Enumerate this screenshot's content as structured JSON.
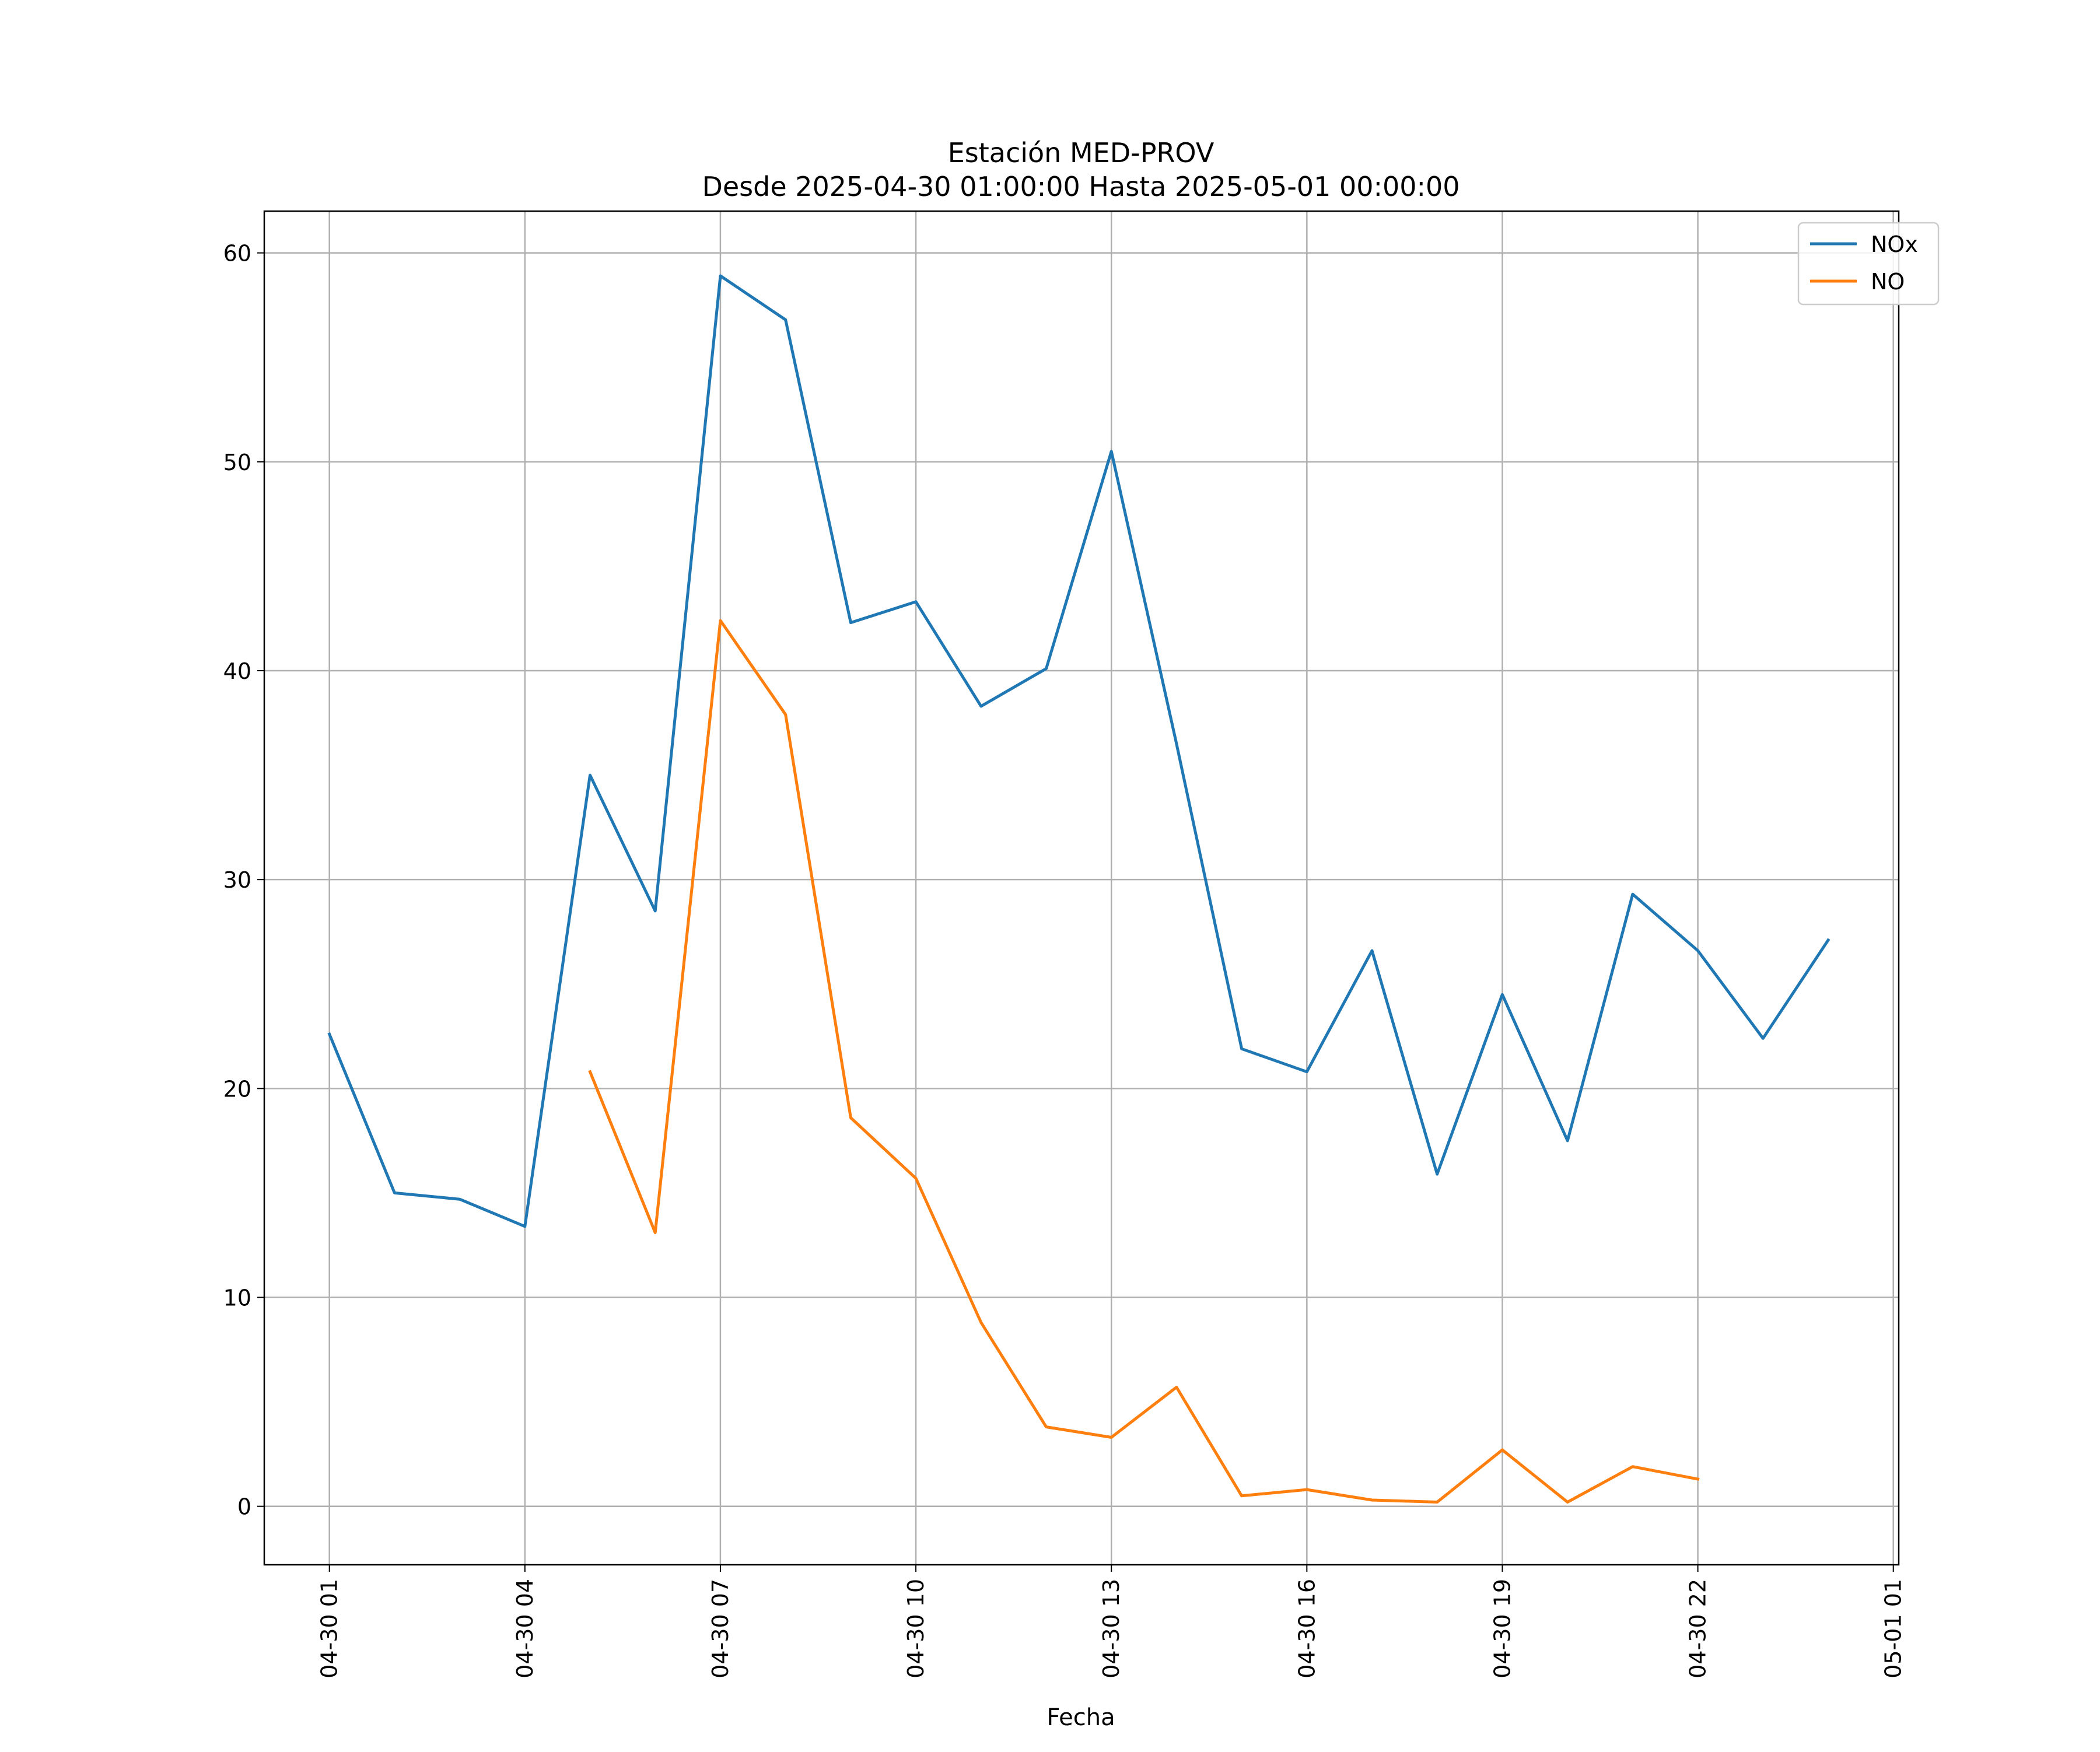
{
  "chart_data": {
    "type": "line",
    "title": "Estación MED-PROV",
    "subtitle": "Desde 2025-04-30 01:00:00 Hasta 2025-05-01 00:00:00",
    "xlabel": "Fecha",
    "ylabel": "",
    "x": [
      "04-30 01",
      "04-30 02",
      "04-30 03",
      "04-30 04",
      "04-30 05",
      "04-30 06",
      "04-30 07",
      "04-30 08",
      "04-30 09",
      "04-30 10",
      "04-30 11",
      "04-30 12",
      "04-30 13",
      "04-30 14",
      "04-30 15",
      "04-30 16",
      "04-30 17",
      "04-30 18",
      "04-30 19",
      "04-30 20",
      "04-30 21",
      "04-30 22",
      "04-30 23",
      "05-01 00"
    ],
    "xlim": [
      "04-30 00:00",
      "05-01 01:05"
    ],
    "ylim": [
      -2.8,
      62
    ],
    "x_ticks": [
      "04-30 01",
      "04-30 04",
      "04-30 07",
      "04-30 10",
      "04-30 13",
      "04-30 16",
      "04-30 19",
      "04-30 22",
      "05-01 01"
    ],
    "y_ticks": [
      0,
      10,
      20,
      30,
      40,
      50,
      60
    ],
    "grid": true,
    "legend_position": "top-right",
    "series": [
      {
        "name": "NOx",
        "color": "#1f77b4",
        "values": [
          22.6,
          15.0,
          14.7,
          13.4,
          35.0,
          28.5,
          58.9,
          56.8,
          42.3,
          43.3,
          38.3,
          40.1,
          50.5,
          36.5,
          21.9,
          20.8,
          26.6,
          15.9,
          24.5,
          17.5,
          29.3,
          26.6,
          22.4,
          27.1
        ]
      },
      {
        "name": "NO",
        "color": "#ff7f0e",
        "values": [
          null,
          null,
          null,
          null,
          20.8,
          13.1,
          42.4,
          37.9,
          18.6,
          15.7,
          8.8,
          3.8,
          3.3,
          5.7,
          0.5,
          0.8,
          0.3,
          0.2,
          2.7,
          0.2,
          1.9,
          1.3,
          null,
          null
        ]
      }
    ]
  }
}
